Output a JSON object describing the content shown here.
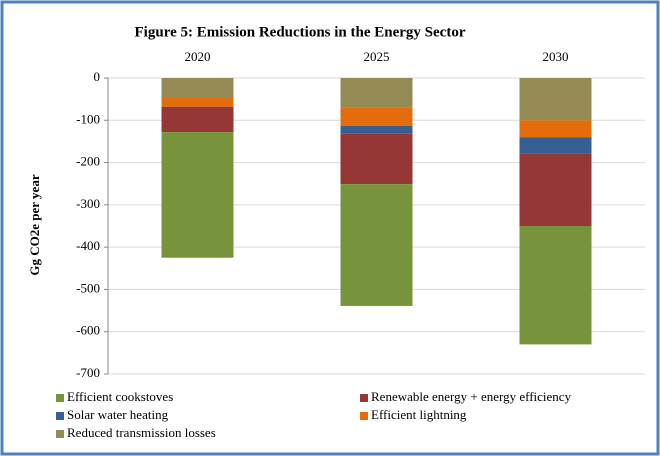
{
  "chart_data": {
    "type": "stacked-bar",
    "title": "Figure 5: Emission Reductions in the Energy Sector",
    "y_label": "Gg CO2e per year",
    "categories": [
      "2020",
      "2025",
      "2030"
    ],
    "series": [
      {
        "name": "Efficient cookstoves",
        "color": "#77933c",
        "values": [
          -297,
          -288,
          -280
        ]
      },
      {
        "name": "Renewable energy + energy efficiency",
        "color": "#953735",
        "values": [
          -60,
          -119,
          -172
        ]
      },
      {
        "name": "Solar water heating",
        "color": "#376092",
        "values": [
          0,
          -19,
          -38
        ]
      },
      {
        "name": "Efficient lightning",
        "color": "#e46c0a",
        "values": [
          -23,
          -43,
          -40
        ]
      },
      {
        "name": "Reduced transmission losses",
        "color": "#948a54",
        "values": [
          -45,
          -70,
          -100
        ]
      }
    ],
    "ylim": [
      -700,
      0
    ],
    "yticks": [
      0,
      -100,
      -200,
      -300,
      -400,
      -500,
      -600,
      -700
    ],
    "grid": true
  }
}
